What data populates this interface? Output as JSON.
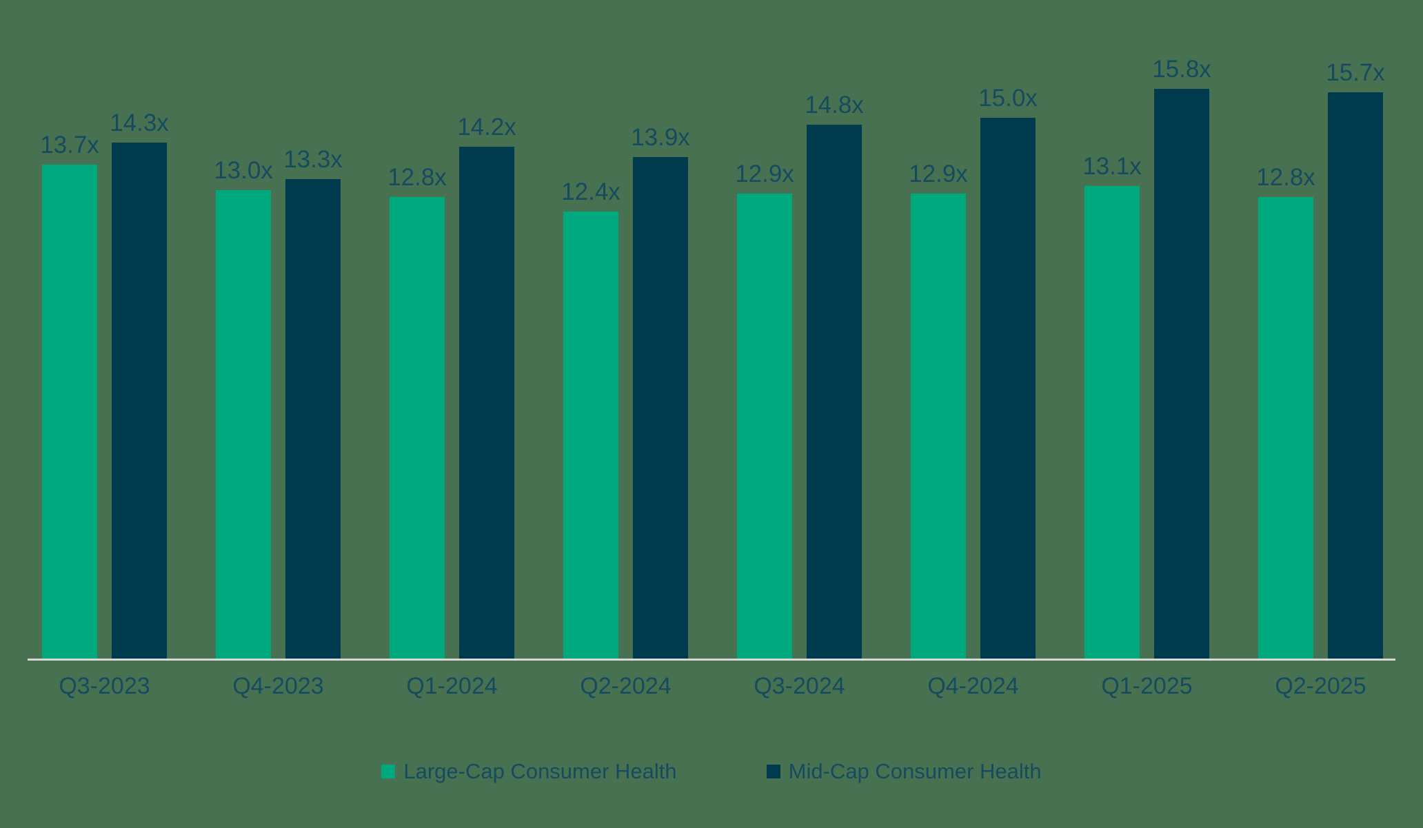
{
  "chart_data": {
    "type": "bar",
    "title": "",
    "xlabel": "",
    "ylabel": "",
    "ylim": [
      0,
      16
    ],
    "grid": false,
    "legend_position": "bottom",
    "value_suffix": "x",
    "background_color": "#487151",
    "text_color": "#164B5F",
    "axis_line_color": "#D8D8D8",
    "categories": [
      "Q3-2023",
      "Q4-2023",
      "Q1-2024",
      "Q2-2024",
      "Q3-2024",
      "Q4-2024",
      "Q1-2025",
      "Q2-2025"
    ],
    "series": [
      {
        "name": "Large-Cap Consumer Health",
        "color": "#00A87D",
        "values": [
          13.7,
          13.0,
          12.8,
          12.4,
          12.9,
          12.9,
          13.1,
          12.8
        ],
        "labels": [
          "13.7x",
          "13.0x",
          "12.8x",
          "12.4x",
          "12.9x",
          "12.9x",
          "13.1x",
          "12.8x"
        ]
      },
      {
        "name": "Mid-Cap Consumer Health",
        "color": "#003B4D",
        "values": [
          14.3,
          13.3,
          14.2,
          13.9,
          14.8,
          15.0,
          15.8,
          15.7
        ],
        "labels": [
          "14.3x",
          "13.3x",
          "14.2x",
          "13.9x",
          "14.8x",
          "15.0x",
          "15.8x",
          "15.7x"
        ]
      }
    ]
  }
}
